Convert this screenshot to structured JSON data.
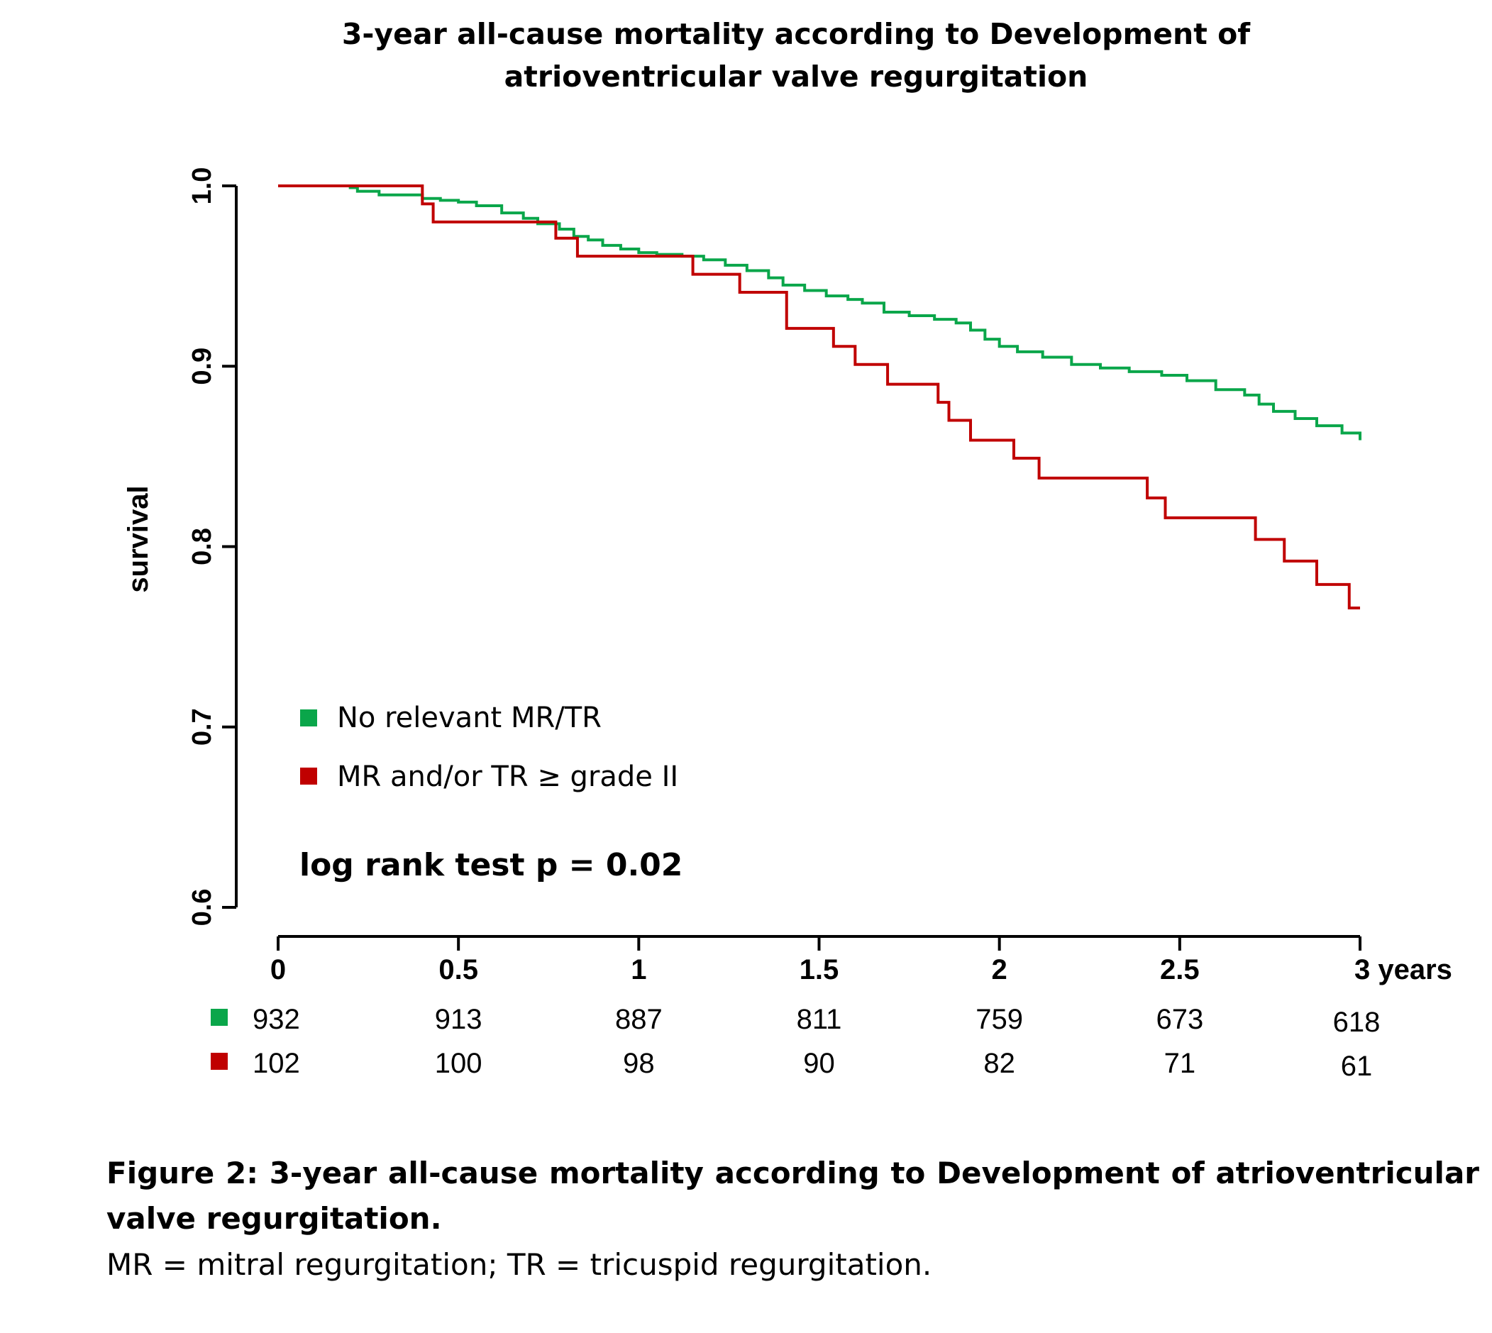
{
  "colors": {
    "no_relevant": "#0aa64a",
    "mr_tr": "#c00000",
    "axis": "#000000"
  },
  "chart_data": {
    "type": "line",
    "step": true,
    "title": "3-year all-cause mortality according to Development of atrioventricular valve regurgitation",
    "title_lines": [
      "3-year all-cause mortality according to Development of",
      "atrioventricular valve regurgitation"
    ],
    "xlabel": "",
    "ylabel": "survival",
    "xlim": [
      0,
      3
    ],
    "ylim": [
      0.6,
      1.0
    ],
    "x_ticks": [
      0,
      0.5,
      1,
      1.5,
      2,
      2.5,
      3
    ],
    "x_tick_labels": [
      "0",
      "0.5",
      "1",
      "1.5",
      "2",
      "2.5",
      "3 years"
    ],
    "y_ticks": [
      0.6,
      0.7,
      0.8,
      0.9,
      1.0
    ],
    "y_tick_labels": [
      "0.6",
      "0.7",
      "0.8",
      "0.9",
      "1.0"
    ],
    "grid": false,
    "legend_position": "bottom-left",
    "annotation": "log rank test p = 0.02",
    "series": [
      {
        "name": "No relevant MR/TR",
        "color": "#0aa64a",
        "x": [
          0,
          0.2,
          0.22,
          0.28,
          0.4,
          0.45,
          0.5,
          0.55,
          0.62,
          0.68,
          0.72,
          0.78,
          0.82,
          0.86,
          0.9,
          0.95,
          1.0,
          1.05,
          1.12,
          1.18,
          1.24,
          1.3,
          1.36,
          1.4,
          1.46,
          1.52,
          1.58,
          1.62,
          1.68,
          1.75,
          1.82,
          1.88,
          1.92,
          1.96,
          2.0,
          2.05,
          2.12,
          2.2,
          2.28,
          2.36,
          2.45,
          2.52,
          2.6,
          2.68,
          2.72,
          2.76,
          2.82,
          2.88,
          2.95,
          3.0
        ],
        "y": [
          1.0,
          0.999,
          0.997,
          0.995,
          0.993,
          0.992,
          0.991,
          0.989,
          0.985,
          0.982,
          0.979,
          0.976,
          0.972,
          0.97,
          0.967,
          0.965,
          0.963,
          0.962,
          0.961,
          0.959,
          0.956,
          0.953,
          0.949,
          0.945,
          0.942,
          0.939,
          0.937,
          0.935,
          0.93,
          0.928,
          0.926,
          0.924,
          0.92,
          0.915,
          0.911,
          0.908,
          0.905,
          0.901,
          0.899,
          0.897,
          0.895,
          0.892,
          0.887,
          0.884,
          0.879,
          0.875,
          0.871,
          0.867,
          0.863,
          0.859
        ]
      },
      {
        "name": "MR and/or TR ≥ grade II",
        "color": "#c00000",
        "x": [
          0,
          0.4,
          0.43,
          0.77,
          0.83,
          1.15,
          1.28,
          1.41,
          1.54,
          1.6,
          1.69,
          1.83,
          1.86,
          1.92,
          2.04,
          2.11,
          2.41,
          2.46,
          2.71,
          2.79,
          2.88,
          2.97,
          3.0
        ],
        "y": [
          1.0,
          0.99,
          0.98,
          0.971,
          0.961,
          0.951,
          0.941,
          0.921,
          0.911,
          0.901,
          0.89,
          0.88,
          0.87,
          0.859,
          0.849,
          0.838,
          0.827,
          0.816,
          0.804,
          0.792,
          0.779,
          0.766,
          0.766
        ]
      }
    ],
    "risk_table": {
      "rows": [
        {
          "group": "No relevant MR/TR",
          "color": "#0aa64a",
          "values": [
            "932",
            "913",
            "887",
            "811",
            "759",
            "673",
            "618"
          ]
        },
        {
          "group": "MR and/or TR ≥ grade II",
          "color": "#c00000",
          "values": [
            "102",
            "100",
            "98",
            "90",
            "82",
            "71",
            "61"
          ]
        }
      ]
    }
  },
  "caption": {
    "title": "Figure 2: 3-year all-cause mortality according to Development of atrioventricular valve regurgitation.",
    "note": "MR = mitral regurgitation; TR = tricuspid regurgitation."
  }
}
